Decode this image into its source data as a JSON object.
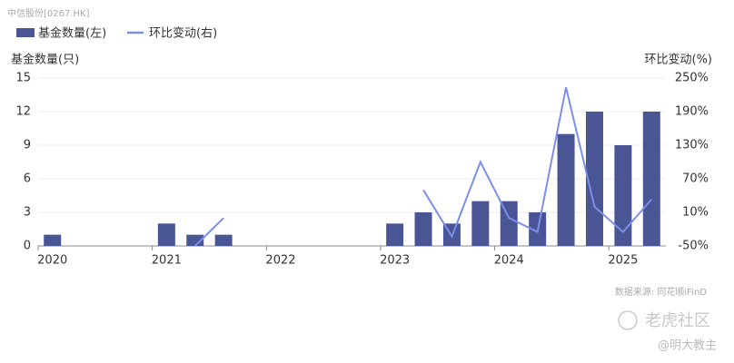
{
  "header": {
    "security": "中信股份[0267.HK]"
  },
  "chart_data": {
    "type": "bar",
    "categories": [
      "2020",
      null,
      null,
      null,
      "2021",
      null,
      null,
      null,
      "2022",
      null,
      null,
      null,
      "2023",
      null,
      null,
      null,
      "2024",
      null,
      null,
      null,
      "2025",
      null
    ],
    "series": [
      {
        "name": "基金数量(左)",
        "type": "bar",
        "color": "#4a5596",
        "values": [
          1,
          null,
          null,
          null,
          2,
          1,
          1,
          null,
          null,
          null,
          null,
          null,
          2,
          3,
          2,
          4,
          4,
          3,
          10,
          12,
          9,
          12
        ]
      },
      {
        "name": "环比变动(右)",
        "type": "line",
        "axis": "y2",
        "color": "#7b8fe8",
        "values": [
          null,
          null,
          null,
          null,
          null,
          -50,
          0,
          null,
          null,
          null,
          null,
          null,
          null,
          50,
          -33.3,
          100,
          0,
          -25,
          233.3,
          20,
          -25,
          33.3
        ]
      }
    ],
    "y_label": "基金数量(只)",
    "y2_label": "环比变动(%)",
    "ylim": [
      0,
      15
    ],
    "yticks": [
      0,
      3,
      6,
      9,
      12,
      15
    ],
    "y2lim": [
      -50,
      250
    ],
    "y2ticks": [
      {
        "value": -50,
        "label": "-50%"
      },
      {
        "value": 10,
        "label": "10%"
      },
      {
        "value": 70,
        "label": "70%"
      },
      {
        "value": 130,
        "label": "130%"
      },
      {
        "value": 190,
        "label": "190%"
      },
      {
        "value": 250,
        "label": "250%"
      }
    ],
    "grid": true,
    "source": "数据来源: 同花顺iFinD"
  },
  "watermark": {
    "brand": "老虎社区",
    "user": "@明大教主"
  }
}
